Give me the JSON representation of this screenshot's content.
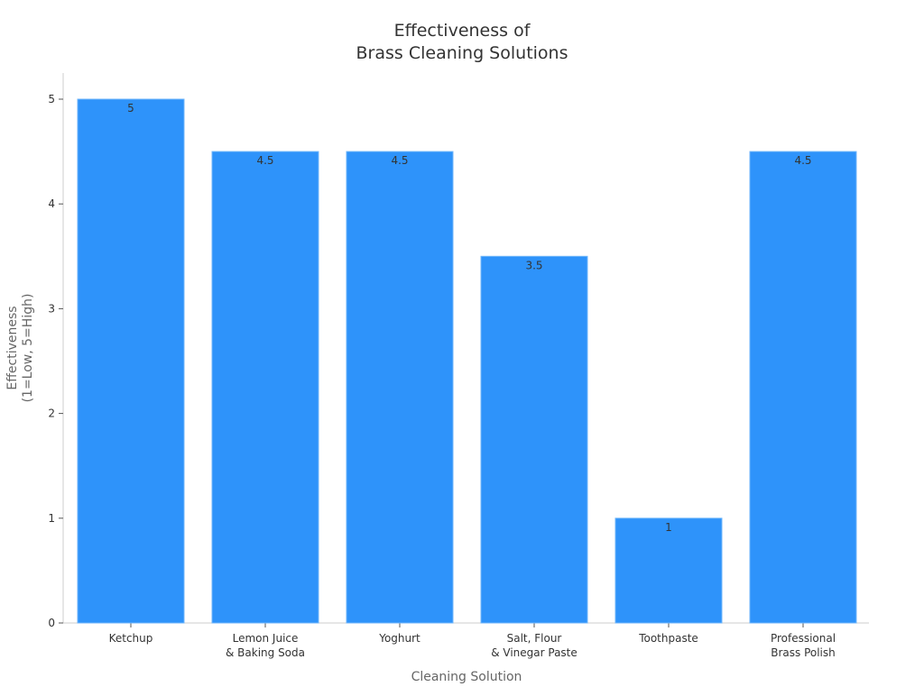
{
  "chart_data": {
    "type": "bar",
    "title": [
      "Effectiveness of",
      "Brass Cleaning Solutions"
    ],
    "xlabel": "Cleaning Solution",
    "ylabel": [
      "Effectiveness",
      "(1=Low, 5=High)"
    ],
    "categories": [
      [
        "Ketchup"
      ],
      [
        "Lemon Juice",
        "& Baking Soda"
      ],
      [
        "Yoghurt"
      ],
      [
        "Salt, Flour",
        "& Vinegar Paste"
      ],
      [
        "Toothpaste"
      ],
      [
        "Professional",
        "Brass Polish"
      ]
    ],
    "values": [
      5,
      4.5,
      4.5,
      3.5,
      1,
      4.5
    ],
    "data_labels": [
      "5",
      "4.5",
      "4.5",
      "3.5",
      "1",
      "4.5"
    ],
    "ylim": [
      0,
      5.25
    ],
    "yticks": [
      0,
      1,
      2,
      3,
      4,
      5
    ],
    "grid": false,
    "legend": "none",
    "colors": {
      "bar": "#2e93fa",
      "bar_edge": "#6fb6fb",
      "axis": "#cccccc",
      "text": "#333333",
      "label": "#666666"
    }
  }
}
